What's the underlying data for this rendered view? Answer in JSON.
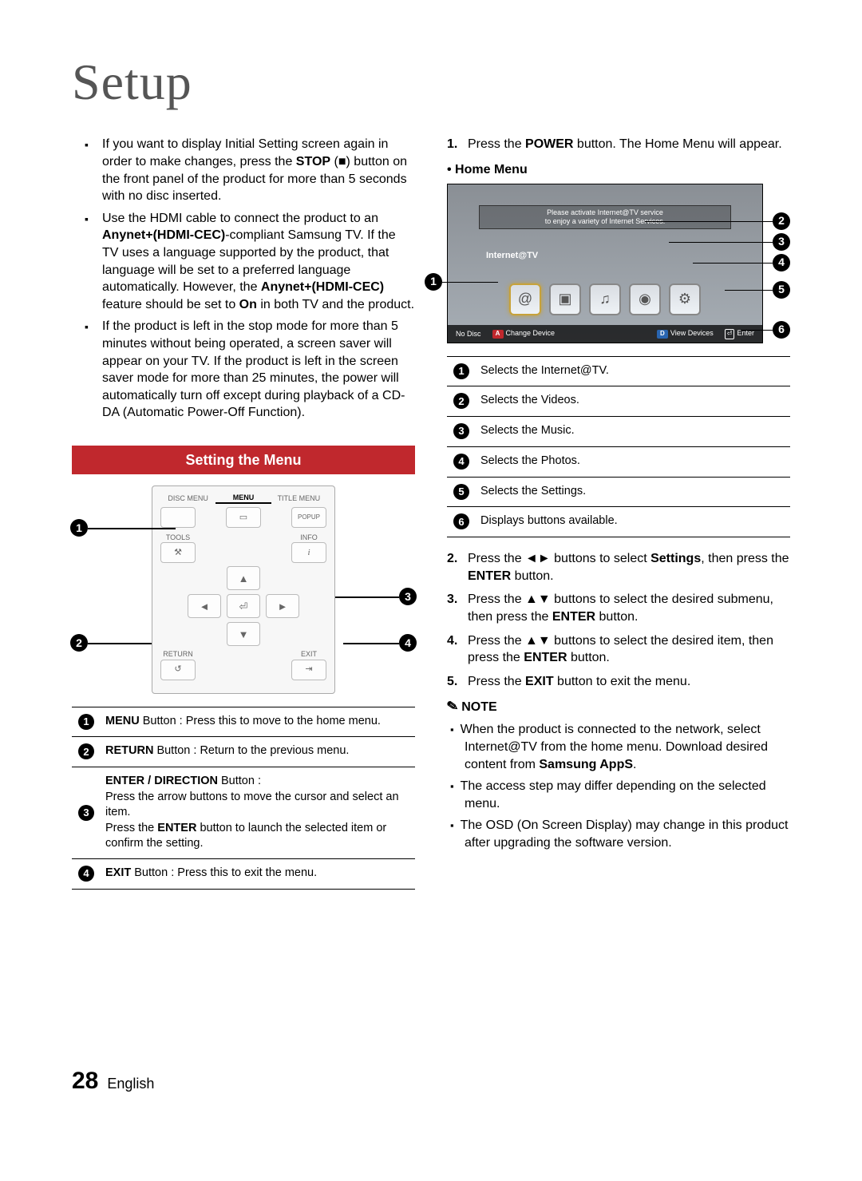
{
  "page": {
    "title": "Setup",
    "number": "28",
    "language": "English"
  },
  "left_bullets": [
    "If you want to display Initial Setting screen again in order to make changes, press the <b>STOP</b> (■) button on the front panel of the product for more than 5 seconds with no disc inserted.",
    "Use the HDMI cable to connect the product to an <b>Anynet+(HDMI-CEC)</b>-compliant Samsung TV. If the TV uses a language supported by the product, that language will be set to a preferred language automatically. However, the <b>Anynet+(HDMI-CEC)</b> feature should be set to <b>On</b> in both TV and the product.",
    "If the product is left in the stop mode for more than 5 minutes without being operated, a screen saver will appear on your TV. If the product is left in the screen saver mode for more than 25 minutes, the power will automatically turn off except during playback of a CD-DA (Automatic Power-Off Function)."
  ],
  "section_menu": {
    "header": "Setting the Menu"
  },
  "remote": {
    "top_labels": [
      "DISC MENU",
      "MENU",
      "TITLE MENU"
    ],
    "popup": "POPUP",
    "side_labels": {
      "tools": "TOOLS",
      "info": "INFO",
      "return": "RETURN",
      "exit": "EXIT"
    },
    "table": [
      {
        "n": "1",
        "html": "<b>MENU</b> Button : Press this to move to the home menu."
      },
      {
        "n": "2",
        "html": "<b>RETURN</b> Button : Return to the previous menu."
      },
      {
        "n": "3",
        "html": "<b>ENTER / DIRECTION</b> Button :<br>Press the arrow buttons to move the cursor and select an item.<br>Press the <b>ENTER</b> button to launch the selected item or confirm the setting."
      },
      {
        "n": "4",
        "html": "<b>EXIT</b> Button : Press this to exit the menu."
      }
    ]
  },
  "right": {
    "step1": "Press the <b>POWER</b> button. The Home Menu will appear.",
    "home_menu_label": "• Home Menu",
    "banner_line1": "Please activate Internet@TV service",
    "banner_line2": "to enjoy a variety of Internet Services.",
    "internet_label": "Internet@TV",
    "bottombar": {
      "nodisc": "No Disc",
      "change": "Change Device",
      "view": "View Devices",
      "enter": "Enter"
    },
    "home_table": [
      {
        "n": "1",
        "t": "Selects the Internet@TV."
      },
      {
        "n": "2",
        "t": "Selects the Videos."
      },
      {
        "n": "3",
        "t": "Selects the Music."
      },
      {
        "n": "4",
        "t": "Selects the Photos."
      },
      {
        "n": "5",
        "t": "Selects the Settings."
      },
      {
        "n": "6",
        "t": "Displays buttons available."
      }
    ],
    "steps_rest": [
      "Press the ◄► buttons to select <b>Settings</b>, then press the <b>ENTER</b> button.",
      "Press the ▲▼ buttons to select the desired submenu, then press the <b>ENTER</b> button.",
      "Press the ▲▼ buttons to select the desired item, then press the <b>ENTER</b> button.",
      "Press the <b>EXIT</b> button to exit the menu."
    ],
    "note_label": "NOTE",
    "notes": [
      "When the product is connected to the network, select Internet@TV from the home menu. Download desired content from <b>Samsung AppS</b>.",
      "The access step may differ depending on the selected menu.",
      "The OSD (On Screen Display) may change in this product after upgrading the software version."
    ]
  }
}
